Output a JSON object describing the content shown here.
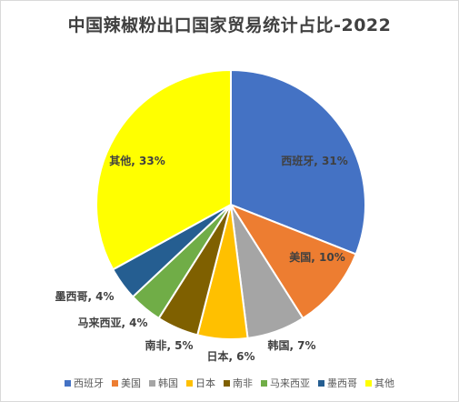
{
  "chart_data": {
    "type": "pie",
    "title": "中国辣椒粉出口国家贸易统计占比-2022",
    "slices": [
      {
        "label": "西班牙",
        "value": 31,
        "display": "西班牙, 31%",
        "color": "#4472C4"
      },
      {
        "label": "美国",
        "value": 10,
        "display": "美国, 10%",
        "color": "#ED7D31"
      },
      {
        "label": "韩国",
        "value": 7,
        "display": "韩国, 7%",
        "color": "#A5A5A5"
      },
      {
        "label": "日本",
        "value": 6,
        "display": "日本, 6%",
        "color": "#FFC000"
      },
      {
        "label": "南非",
        "value": 5,
        "display": "南非, 5%",
        "color": "#7F6000"
      },
      {
        "label": "马来西亚",
        "value": 4,
        "display": "马来西亚, 4%",
        "color": "#70AD47"
      },
      {
        "label": "墨西哥",
        "value": 4,
        "display": "墨西哥, 4%",
        "color": "#255E91"
      },
      {
        "label": "其他",
        "value": 33,
        "display": "其他, 33%",
        "color": "#FFFF00"
      }
    ],
    "legend_position": "bottom"
  }
}
